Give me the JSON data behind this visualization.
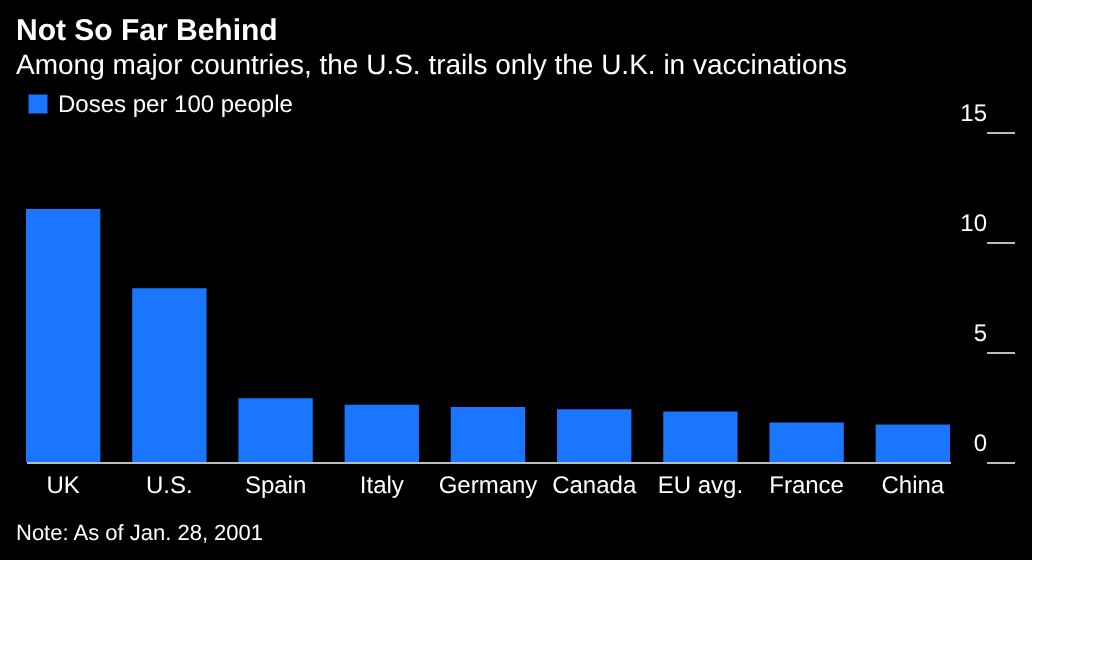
{
  "chart_data": {
    "type": "bar",
    "title": "Not So Far Behind",
    "subtitle": "Among major countries, the U.S. trails only the U.K. in vaccinations",
    "categories": [
      "UK",
      "U.S.",
      "Spain",
      "Italy",
      "Germany",
      "Canada",
      "EU avg.",
      "France",
      "China"
    ],
    "series": [
      {
        "name": "Doses per 100 people",
        "color": "#1a75ff",
        "values": [
          11.5,
          7.9,
          2.9,
          2.6,
          2.5,
          2.4,
          2.3,
          1.8,
          1.7
        ]
      }
    ],
    "ylim": [
      0,
      15
    ],
    "yticks": [
      0,
      5,
      10,
      15
    ],
    "grid": false,
    "legend": "top left",
    "annotations": [
      "Note: As of Jan. 28, 2001"
    ]
  }
}
